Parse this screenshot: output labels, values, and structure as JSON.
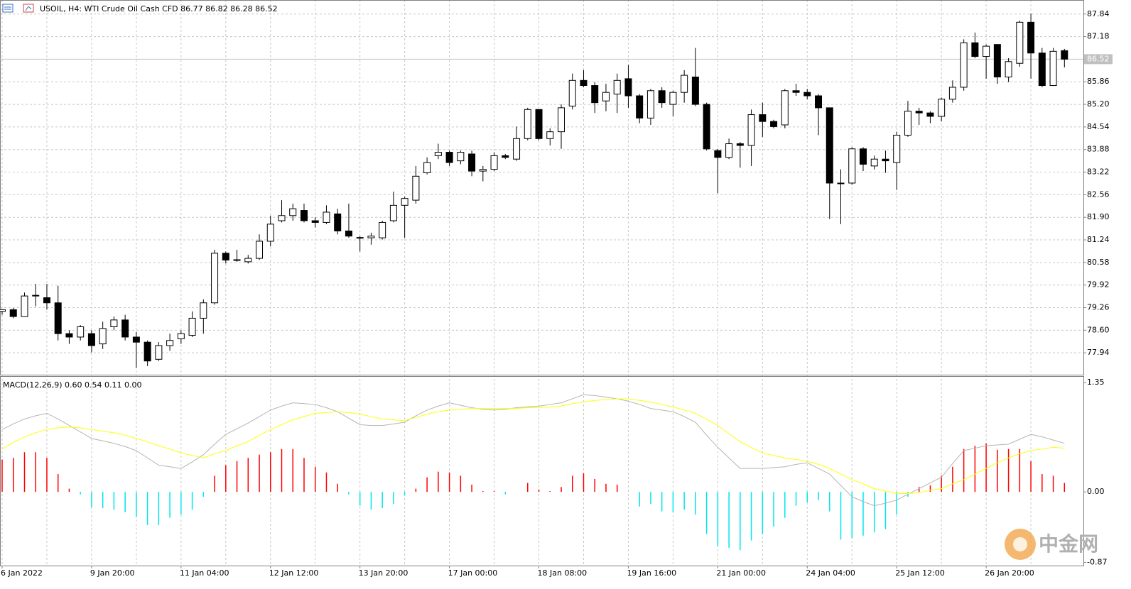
{
  "chart_data": {
    "type": "candlestick",
    "title": "USOIL, H4:  WTI Crude Oil Cash CFD  86.77 86.82 86.28 86.52",
    "categories": [
      "6 Jan 2022",
      null,
      null,
      null,
      null,
      null,
      null,
      null,
      "9 Jan 20:00",
      null,
      null,
      null,
      null,
      null,
      null,
      null,
      "11 Jan 04:00",
      null,
      null,
      null,
      null,
      null,
      null,
      null,
      "12 Jan 12:00",
      null,
      null,
      null,
      null,
      null,
      null,
      null,
      "13 Jan 20:00",
      null,
      null,
      null,
      null,
      null,
      null,
      null,
      "17 Jan 00:00",
      null,
      null,
      null,
      null,
      null,
      null,
      null,
      "18 Jan 08:00",
      null,
      null,
      null,
      null,
      null,
      null,
      null,
      "19 Jan 16:00",
      null,
      null,
      null,
      null,
      null,
      null,
      null,
      "21 Jan 00:00",
      null,
      null,
      null,
      null,
      null,
      null,
      null,
      "24 Jan 04:00",
      null,
      null,
      null,
      null,
      null,
      null,
      null,
      "25 Jan 12:00",
      null,
      null,
      null,
      null,
      null,
      null,
      null,
      "26 Jan 20:00",
      null,
      null,
      null,
      null,
      null,
      null,
      null
    ],
    "open": [
      79.15,
      79.2,
      79.0,
      79.6,
      79.55,
      79.4,
      78.5,
      78.4,
      78.5,
      78.2,
      78.7,
      78.9,
      78.4,
      78.25,
      77.75,
      78.15,
      78.35,
      78.45,
      78.95,
      79.4,
      80.85,
      80.65,
      80.6,
      80.7,
      81.2,
      81.8,
      81.95,
      82.1,
      81.8,
      81.75,
      82.0,
      81.5,
      81.3,
      81.3,
      81.3,
      81.8,
      82.25,
      82.4,
      83.2,
      83.7,
      83.8,
      83.55,
      83.75,
      83.25,
      83.3,
      83.7,
      83.6,
      84.2,
      85.05,
      84.2,
      84.4,
      85.15,
      85.9,
      85.75,
      85.3,
      85.5,
      85.95,
      85.45,
      84.8,
      85.6,
      85.2,
      85.55,
      86.0,
      85.2,
      83.85,
      83.65,
      84.05,
      84.0,
      84.9,
      84.7,
      84.6,
      85.6,
      85.55,
      85.45,
      85.1,
      82.9,
      82.9,
      83.9,
      83.4,
      83.6,
      83.5,
      84.3,
      85.0,
      84.95,
      84.85,
      85.35,
      85.7,
      87.0,
      86.6,
      86.95,
      86.0,
      86.4,
      87.6,
      86.7,
      85.75,
      86.77
    ],
    "high": [
      79.2,
      79.25,
      79.7,
      79.95,
      79.95,
      79.9,
      78.6,
      78.75,
      78.6,
      78.85,
      79.0,
      79.05,
      78.55,
      78.3,
      78.25,
      78.5,
      78.6,
      79.15,
      79.5,
      80.95,
      80.9,
      80.95,
      80.8,
      81.4,
      81.95,
      82.4,
      82.3,
      82.3,
      81.9,
      82.25,
      82.15,
      82.3,
      81.35,
      81.45,
      81.8,
      82.65,
      82.5,
      83.4,
      83.65,
      84.05,
      83.85,
      83.85,
      83.85,
      83.4,
      83.8,
      83.75,
      84.55,
      85.1,
      85.05,
      84.5,
      85.2,
      86.1,
      86.2,
      85.85,
      85.8,
      86.1,
      86.35,
      85.5,
      85.65,
      85.7,
      85.6,
      86.2,
      86.85,
      85.25,
      83.9,
      84.2,
      84.1,
      85.05,
      85.25,
      84.75,
      85.65,
      85.8,
      85.65,
      85.5,
      85.1,
      83.3,
      83.95,
      83.95,
      83.7,
      83.85,
      84.4,
      85.3,
      85.1,
      85.0,
      85.4,
      85.9,
      87.1,
      87.3,
      86.95,
      86.95,
      86.55,
      87.65,
      87.85,
      86.85,
      86.85,
      86.82
    ],
    "low": [
      79.05,
      78.95,
      79.0,
      79.3,
      79.2,
      78.3,
      78.2,
      78.3,
      77.95,
      78.05,
      78.6,
      78.3,
      77.5,
      77.55,
      77.7,
      78.0,
      78.2,
      78.4,
      78.5,
      79.35,
      80.55,
      80.6,
      80.55,
      80.65,
      81.05,
      81.75,
      81.8,
      81.75,
      81.6,
      81.7,
      81.4,
      81.3,
      80.9,
      81.1,
      81.25,
      81.75,
      81.3,
      82.3,
      83.15,
      83.6,
      83.4,
      83.45,
      83.1,
      82.95,
      83.25,
      83.6,
      83.55,
      84.15,
      84.15,
      84.0,
      83.9,
      85.05,
      85.7,
      84.95,
      85.0,
      84.95,
      85.1,
      84.65,
      84.6,
      85.1,
      84.85,
      85.25,
      85.15,
      83.85,
      82.6,
      83.6,
      83.35,
      83.4,
      84.25,
      84.5,
      84.5,
      85.45,
      85.35,
      84.3,
      81.85,
      81.7,
      82.85,
      83.25,
      83.3,
      83.2,
      82.7,
      84.25,
      84.6,
      84.65,
      84.7,
      85.25,
      85.6,
      86.55,
      85.95,
      85.8,
      85.85,
      86.3,
      85.95,
      85.7,
      85.75,
      86.28
    ],
    "close": [
      79.2,
      79.0,
      79.6,
      79.62,
      79.4,
      78.5,
      78.4,
      78.7,
      78.15,
      78.65,
      78.9,
      78.4,
      78.25,
      77.7,
      78.15,
      78.3,
      78.5,
      78.95,
      79.4,
      80.85,
      80.65,
      80.66,
      80.7,
      81.2,
      81.7,
      81.95,
      82.15,
      81.8,
      81.75,
      82.05,
      81.5,
      81.35,
      81.31,
      81.35,
      81.75,
      82.25,
      82.45,
      83.1,
      83.5,
      83.8,
      83.5,
      83.8,
      83.25,
      83.3,
      83.7,
      83.65,
      84.2,
      85.05,
      84.2,
      84.4,
      85.1,
      85.9,
      85.75,
      85.25,
      85.55,
      85.9,
      85.45,
      84.8,
      85.6,
      85.25,
      85.55,
      86.05,
      85.2,
      83.9,
      83.65,
      84.05,
      84.0,
      84.9,
      84.7,
      84.55,
      85.6,
      85.55,
      85.45,
      85.1,
      82.9,
      82.88,
      83.9,
      83.45,
      83.6,
      83.55,
      84.3,
      85.0,
      84.95,
      84.85,
      85.35,
      85.7,
      87.0,
      86.6,
      86.9,
      86.0,
      86.45,
      87.6,
      86.7,
      85.75,
      86.75,
      86.52
    ],
    "up_color": "#ffffff",
    "down_color": "#000000",
    "ylim": [
      77.3,
      88.25
    ],
    "yticks": [
      87.84,
      87.18,
      85.86,
      {
        "value": 85.2,
        "label": "85.20"
      },
      84.54,
      83.88,
      83.22,
      82.56,
      {
        "value": 81.9,
        "label": "81.90"
      },
      81.24,
      80.58,
      79.92,
      79.26,
      {
        "value": 78.6,
        "label": "78.60"
      },
      77.94
    ],
    "last_price": 86.52,
    "grid": true,
    "indicator": {
      "title": "MACD(12,26,9) 0.60 0.54 0.11 0.00",
      "ylim": [
        -0.91,
        1.43
      ],
      "yticks": [
        1.35,
        {
          "value": 0,
          "label": "0.00"
        },
        -0.87
      ],
      "histogram": {
        "up_color": "#ff0000",
        "down_color": "#00e5ee",
        "values": [
          0.4,
          0.42,
          0.49,
          0.49,
          0.42,
          0.22,
          0.04,
          -0.03,
          -0.19,
          -0.2,
          -0.22,
          -0.25,
          -0.31,
          -0.41,
          -0.41,
          -0.32,
          -0.28,
          -0.22,
          -0.06,
          0.2,
          0.33,
          0.38,
          0.42,
          0.46,
          0.49,
          0.53,
          0.53,
          0.42,
          0.31,
          0.24,
          0.1,
          -0.03,
          -0.17,
          -0.22,
          -0.2,
          -0.15,
          -0.04,
          0.04,
          0.18,
          0.25,
          0.24,
          0.2,
          0.09,
          0.01,
          0.01,
          -0.03,
          0,
          0.11,
          0.03,
          0.01,
          0.06,
          0.2,
          0.23,
          0.16,
          0.1,
          0.09,
          0,
          -0.18,
          -0.15,
          -0.24,
          -0.25,
          -0.22,
          -0.28,
          -0.52,
          -0.67,
          -0.69,
          -0.72,
          -0.6,
          -0.52,
          -0.43,
          -0.32,
          -0.17,
          -0.13,
          -0.1,
          -0.24,
          -0.59,
          -0.57,
          -0.54,
          -0.5,
          -0.46,
          -0.28,
          -0.06,
          0.06,
          0.08,
          0.2,
          0.31,
          0.53,
          0.57,
          0.6,
          0.52,
          0.53,
          0.53,
          0.38,
          0.22,
          0.2,
          0.11
        ]
      },
      "lines": [
        {
          "color": "#b4b4b4",
          "values": [
            0.77,
            0.84,
            0.9,
            0.94,
            0.97,
            0.9,
            0.82,
            0.74,
            0.66,
            0.63,
            0.6,
            0.56,
            0.51,
            0.42,
            0.33,
            0.31,
            0.29,
            0.37,
            0.46,
            0.59,
            0.71,
            0.78,
            0.85,
            0.93,
            1.01,
            1.06,
            1.1,
            1.09,
            1.08,
            1.04,
            0.99,
            0.91,
            0.83,
            0.82,
            0.82,
            0.84,
            0.86,
            0.94,
            1.01,
            1.06,
            1.1,
            1.07,
            1.04,
            1.02,
            1.01,
            1.02,
            1.04,
            1.05,
            1.06,
            1.08,
            1.1,
            1.15,
            1.2,
            1.19,
            1.17,
            1.15,
            1.12,
            1.08,
            1.03,
            1.01,
            0.99,
            0.93,
            0.86,
            0.7,
            0.55,
            0.42,
            0.29,
            0.29,
            0.29,
            0.3,
            0.31,
            0.34,
            0.36,
            0.29,
            0.22,
            0.08,
            -0.06,
            -0.12,
            -0.17,
            -0.14,
            -0.1,
            -0.03,
            0.04,
            0.11,
            0.18,
            0.35,
            0.51,
            0.54,
            0.57,
            0.58,
            0.59,
            0.65,
            0.71,
            0.68,
            0.64,
            0.6
          ]
        },
        {
          "color": "#ffff00",
          "values": [
            0.53,
            0.61,
            0.68,
            0.73,
            0.77,
            0.79,
            0.8,
            0.79,
            0.77,
            0.75,
            0.73,
            0.7,
            0.66,
            0.62,
            0.57,
            0.53,
            0.48,
            0.45,
            0.42,
            0.47,
            0.51,
            0.57,
            0.62,
            0.7,
            0.77,
            0.83,
            0.89,
            0.93,
            0.97,
            0.98,
            0.99,
            0.98,
            0.96,
            0.93,
            0.9,
            0.89,
            0.88,
            0.92,
            0.96,
            0.99,
            1.01,
            1.02,
            1.03,
            1.03,
            1.03,
            1.03,
            1.03,
            1.04,
            1.04,
            1.05,
            1.06,
            1.09,
            1.11,
            1.13,
            1.14,
            1.15,
            1.15,
            1.13,
            1.11,
            1.08,
            1.05,
            1.01,
            0.97,
            0.9,
            0.82,
            0.72,
            0.62,
            0.55,
            0.48,
            0.45,
            0.42,
            0.4,
            0.38,
            0.34,
            0.29,
            0.22,
            0.15,
            0.1,
            0.04,
            0.01,
            -0.02,
            -0.02,
            -0.01,
            0.02,
            0.04,
            0.1,
            0.15,
            0.22,
            0.29,
            0.36,
            0.42,
            0.47,
            0.51,
            0.53,
            0.55,
            0.54
          ]
        }
      ]
    }
  },
  "watermark": "中金网"
}
